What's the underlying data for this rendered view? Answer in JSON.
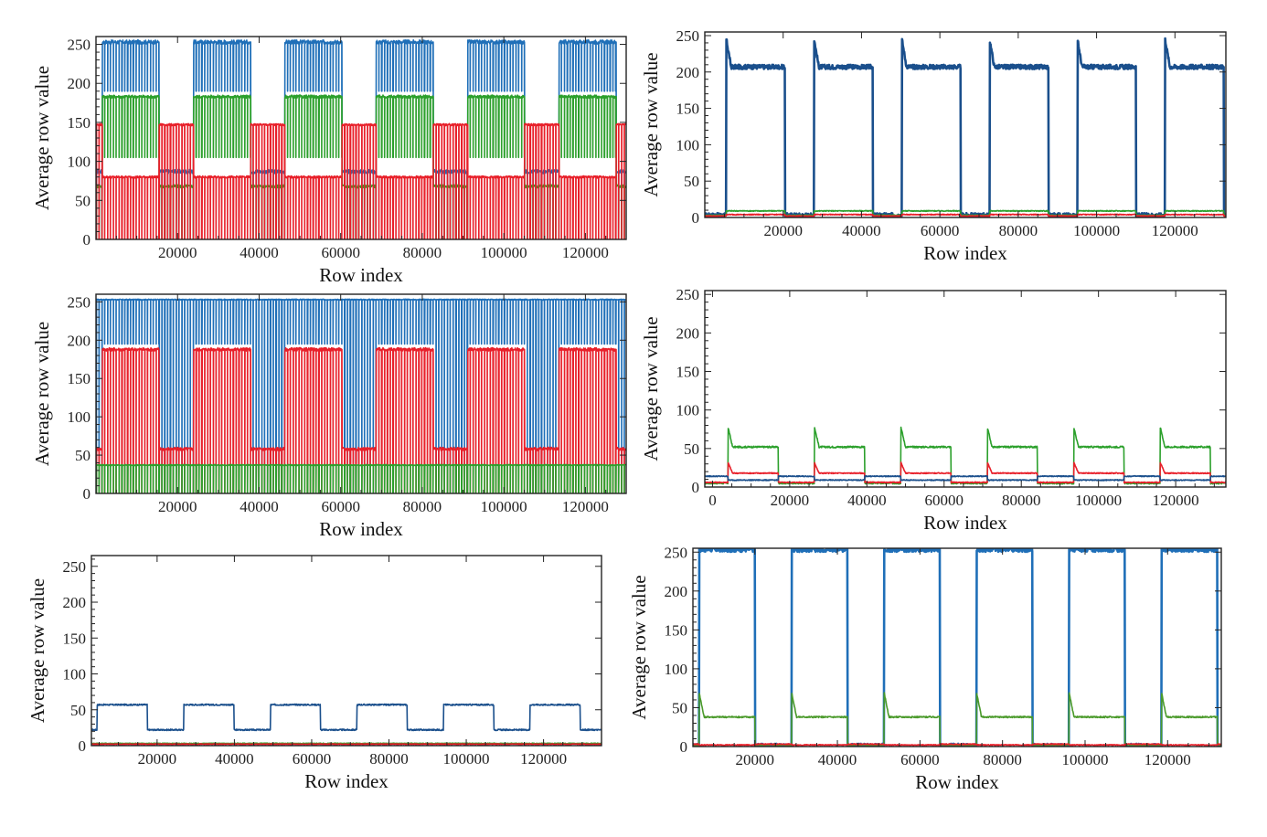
{
  "figure_title": "",
  "colors": {
    "blue": "#1a4f8c",
    "blue_light": "#1f6fb8",
    "green": "#2ca02c",
    "red": "#e8202a"
  },
  "chart_data": [
    {
      "id": "panel-a",
      "type": "line",
      "xlabel": "Row index",
      "ylabel": "Average row value",
      "xlim": [
        0,
        130000
      ],
      "ylim": [
        0,
        260
      ],
      "xticks": [
        20000,
        40000,
        60000,
        80000,
        100000,
        120000
      ],
      "yticks": [
        0,
        50,
        100,
        150,
        200,
        250
      ],
      "period": 22400,
      "on_start": 1500,
      "on_end": 15500,
      "series": [
        {
          "name": "blue",
          "color": "#1f6fb8",
          "on": 253,
          "off": 87,
          "spike_on": 190,
          "spike_off": 0
        },
        {
          "name": "green",
          "color": "#2ca02c",
          "on": 183,
          "off": 68,
          "spike_on": 105,
          "spike_off": 0
        },
        {
          "name": "red",
          "color": "#e8202a",
          "on": 80,
          "off": 147,
          "spike_on": 0,
          "spike_off": 0
        }
      ]
    },
    {
      "id": "panel-b",
      "type": "line",
      "xlabel": "Row index",
      "ylabel": "Average row value",
      "xlim": [
        0,
        133000
      ],
      "ylim": [
        0,
        255
      ],
      "xticks": [
        20000,
        40000,
        60000,
        80000,
        100000,
        120000
      ],
      "yticks": [
        0,
        50,
        100,
        150,
        200,
        250
      ],
      "period": 22400,
      "on_start": 5500,
      "on_end": 20500,
      "series": [
        {
          "name": "blue",
          "color": "#1a4f8c",
          "on": 207,
          "off": 3,
          "peak": 245
        },
        {
          "name": "green",
          "color": "#2ca02c",
          "on": 9,
          "off": 3,
          "peak": 0
        },
        {
          "name": "red",
          "color": "#e8202a",
          "on": 4,
          "off": 2,
          "peak": 0
        }
      ]
    },
    {
      "id": "panel-c",
      "type": "line",
      "xlabel": "Row index",
      "ylabel": "Average row value",
      "xlim": [
        0,
        130000
      ],
      "ylim": [
        0,
        260
      ],
      "xticks": [
        20000,
        40000,
        60000,
        80000,
        100000,
        120000
      ],
      "yticks": [
        0,
        50,
        100,
        150,
        200,
        250
      ],
      "period": 22400,
      "on_start": 1500,
      "on_end": 15500,
      "series": [
        {
          "name": "blue",
          "color": "#1f6fb8",
          "on": 253,
          "off": 253,
          "spike_on": 195,
          "spike_off": 0
        },
        {
          "name": "red",
          "color": "#e8202a",
          "on": 188,
          "off": 58,
          "spike_on": 0,
          "spike_off": 0
        },
        {
          "name": "green",
          "color": "#2ca02c",
          "on": 37,
          "off": 37,
          "spike_on": 0,
          "spike_off": 0
        }
      ]
    },
    {
      "id": "panel-d",
      "type": "line",
      "xlabel": "Row index",
      "ylabel": "Average row value",
      "xlim": [
        -2000,
        133000
      ],
      "ylim": [
        0,
        255
      ],
      "xticks": [
        0,
        20000,
        40000,
        60000,
        80000,
        100000,
        120000
      ],
      "yticks": [
        0,
        50,
        100,
        150,
        200,
        250
      ],
      "period": 22400,
      "on_start": 4000,
      "on_end": 17000,
      "series": [
        {
          "name": "green",
          "color": "#2ca02c",
          "on": 52,
          "off": 5,
          "peak": 78
        },
        {
          "name": "red",
          "color": "#e8202a",
          "on": 18,
          "off": 6,
          "peak": 32
        },
        {
          "name": "blue",
          "color": "#1a4f8c",
          "on": 9,
          "off": 14,
          "peak": 0
        }
      ]
    },
    {
      "id": "panel-e",
      "type": "line",
      "xlabel": "Row index",
      "ylabel": "Average row value",
      "xlim": [
        3000,
        135000
      ],
      "ylim": [
        0,
        265
      ],
      "xticks": [
        20000,
        40000,
        60000,
        80000,
        100000,
        120000
      ],
      "yticks": [
        0,
        50,
        100,
        150,
        200,
        250
      ],
      "period": 22400,
      "on_start": 4500,
      "on_end": 17500,
      "series": [
        {
          "name": "blue",
          "color": "#1a4f8c",
          "on": 57,
          "off": 22,
          "peak": 0
        },
        {
          "name": "green",
          "color": "#2ca02c",
          "on": 3,
          "off": 3,
          "peak": 0
        },
        {
          "name": "red",
          "color": "#e8202a",
          "on": 2,
          "off": 2,
          "peak": 0
        }
      ]
    },
    {
      "id": "panel-f",
      "type": "line",
      "xlabel": "Row index",
      "ylabel": "Average row value",
      "xlim": [
        5000,
        133000
      ],
      "ylim": [
        0,
        255
      ],
      "xticks": [
        20000,
        40000,
        60000,
        80000,
        100000,
        120000
      ],
      "yticks": [
        0,
        50,
        100,
        150,
        200,
        250
      ],
      "period": 22400,
      "on_start": 6500,
      "on_end": 20000,
      "series": [
        {
          "name": "blue",
          "color": "#1f6fb8",
          "on": 254,
          "off": 0,
          "peak": 0
        },
        {
          "name": "green",
          "color": "#4a9a2a",
          "on": 38,
          "off": 2,
          "peak": 70
        },
        {
          "name": "red",
          "color": "#e8202a",
          "on": 2,
          "off": 3,
          "peak": 0
        }
      ]
    }
  ]
}
